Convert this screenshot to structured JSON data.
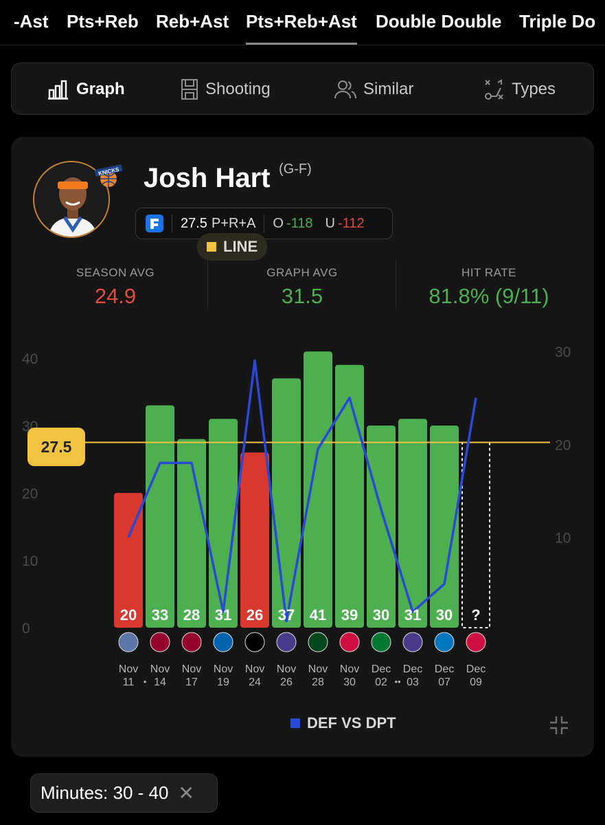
{
  "tabs": [
    {
      "label": "-Ast",
      "active": false
    },
    {
      "label": "Pts+Reb",
      "active": false
    },
    {
      "label": "Reb+Ast",
      "active": false
    },
    {
      "label": "Pts+Reb+Ast",
      "active": true
    },
    {
      "label": "Double Double",
      "active": false
    },
    {
      "label": "Triple Do",
      "active": false
    }
  ],
  "segments": [
    {
      "label": "Graph",
      "icon": "bar-chart-icon",
      "active": true
    },
    {
      "label": "Shooting",
      "icon": "court-icon",
      "active": false
    },
    {
      "label": "Similar",
      "icon": "users-icon",
      "active": false
    },
    {
      "label": "Types",
      "icon": "play-diagram-icon",
      "active": false
    }
  ],
  "player": {
    "name": "Josh Hart",
    "position": "(G-F)",
    "team_logo": "knicks-logo"
  },
  "prop": {
    "line": "27.5",
    "market": "P+R+A",
    "over_label": "O",
    "over_odds": "-118",
    "under_label": "U",
    "under_odds": "-112"
  },
  "stats": {
    "season_avg_label": "SEASON AVG",
    "season_avg": "24.9",
    "graph_avg_label": "GRAPH AVG",
    "graph_avg": "31.5",
    "hit_rate_label": "HIT RATE",
    "hit_rate": "81.8% (9/11)"
  },
  "line_badge": "27.5",
  "chart_data": {
    "type": "bar",
    "categories": [
      "Nov 11",
      "Nov 14",
      "Nov 17",
      "Nov 19",
      "Nov 24",
      "Nov 26",
      "Nov 28",
      "Nov 30",
      "Dec 02",
      "Dec 03",
      "Dec 07",
      "Dec 09"
    ],
    "date_labels": [
      {
        "month": "Nov",
        "day": "11",
        "dot": "•"
      },
      {
        "month": "Nov",
        "day": "14",
        "dot": ""
      },
      {
        "month": "Nov",
        "day": "17",
        "dot": ""
      },
      {
        "month": "Nov",
        "day": "19",
        "dot": ""
      },
      {
        "month": "Nov",
        "day": "24",
        "dot": ""
      },
      {
        "month": "Nov",
        "day": "26",
        "dot": ""
      },
      {
        "month": "Nov",
        "day": "28",
        "dot": ""
      },
      {
        "month": "Nov",
        "day": "30",
        "dot": ""
      },
      {
        "month": "Dec",
        "day": "02",
        "dot": "••"
      },
      {
        "month": "Dec",
        "day": "03",
        "dot": ""
      },
      {
        "month": "Dec",
        "day": "07",
        "dot": ""
      },
      {
        "month": "Dec",
        "day": "09",
        "dot": ""
      }
    ],
    "values": [
      20,
      33,
      28,
      31,
      26,
      37,
      41,
      39,
      30,
      31,
      30,
      null
    ],
    "value_labels": [
      "20",
      "33",
      "28",
      "31",
      "26",
      "37",
      "41",
      "39",
      "30",
      "31",
      "30",
      "?"
    ],
    "line": 27.5,
    "ylim_left": [
      0,
      40
    ],
    "yticks_left": [
      0,
      10,
      20,
      30,
      40
    ],
    "ylim_right": [
      0,
      30
    ],
    "yticks_right": [
      10,
      20,
      30
    ],
    "def_vs_dpt": [
      10,
      18,
      18,
      2,
      29,
      1,
      19.5,
      25,
      13,
      2,
      5,
      25
    ],
    "opponents": [
      "grizzlies-logo",
      "heat-logo",
      "heat-logo",
      "mavericks-logo",
      "nets-logo",
      "hornets-logo",
      "bucks-logo",
      "raptors-logo",
      "celtics-logo",
      "hornets-logo",
      "magic-logo",
      "raptors-logo"
    ],
    "colors": {
      "hit": "#4caf50",
      "miss": "#d9382f",
      "line": "#f2c33f",
      "def": "#2a49d4"
    },
    "legend": [
      {
        "label": "LINE",
        "color": "#f2c33f"
      },
      {
        "label": "DEF VS DPT",
        "color": "#2a49d4"
      }
    ]
  },
  "minutes_filter": "Minutes: 30 - 40",
  "colors": {
    "green": "#4caf50",
    "red": "#e04a3f",
    "accent_gold": "#f2c33f"
  }
}
